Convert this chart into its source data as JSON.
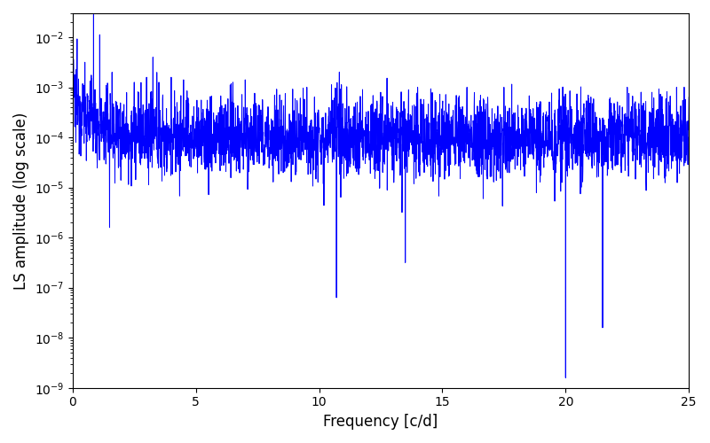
{
  "title": "",
  "xlabel": "Frequency [c/d]",
  "ylabel": "LS amplitude (log scale)",
  "xlim": [
    0,
    25
  ],
  "ylim": [
    1e-09,
    0.03
  ],
  "line_color": "#0000ff",
  "line_width": 0.7,
  "figsize": [
    8.0,
    5.0
  ],
  "dpi": 100,
  "seed": 12345,
  "n_points": 3000,
  "freq_max": 25.0,
  "base_log": -4.0,
  "noise_std": 0.4
}
